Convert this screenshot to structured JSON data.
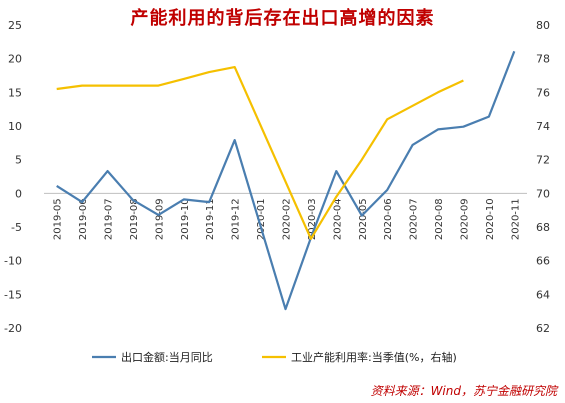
{
  "chart_data": {
    "type": "line",
    "title": "产能利用的背后存在出口高增的因素",
    "categories": [
      "2019-05",
      "2019-06",
      "2019-07",
      "2019-08",
      "2019-09",
      "2019-10",
      "2019-11",
      "2019-12",
      "2020-01",
      "2020-02",
      "2020-03",
      "2020-04",
      "2020-05",
      "2020-06",
      "2020-07",
      "2020-08",
      "2020-09",
      "2020-10",
      "2020-11"
    ],
    "left_axis": {
      "ylim": [
        -20,
        25
      ],
      "ticks": [
        -20,
        -15,
        -10,
        -5,
        0,
        5,
        10,
        15,
        20,
        25
      ]
    },
    "right_axis": {
      "ylim": [
        62,
        80
      ],
      "ticks": [
        62,
        64,
        66,
        68,
        70,
        72,
        74,
        76,
        78,
        80
      ]
    },
    "series": [
      {
        "name": "出口金额:当月同比",
        "axis": "left",
        "color": "#4a7eb0",
        "values": [
          1.1,
          -1.3,
          3.3,
          -1.0,
          -3.2,
          -0.9,
          -1.3,
          7.9,
          null,
          -17.2,
          -6.6,
          3.3,
          -3.3,
          0.5,
          7.2,
          9.5,
          9.9,
          11.4,
          21.1
        ]
      },
      {
        "name": "工业产能利用率:当季值(%，右轴)",
        "axis": "right",
        "color": "#f5c000",
        "values": [
          76.2,
          76.4,
          76.4,
          76.4,
          76.4,
          76.8,
          77.2,
          77.5,
          null,
          null,
          67.3,
          69.8,
          72.0,
          74.4,
          75.2,
          76.0,
          76.7,
          null,
          null
        ]
      }
    ],
    "grid": false,
    "legend_position": "bottom"
  },
  "source": "资料来源：Wind，苏宁金融研究院"
}
